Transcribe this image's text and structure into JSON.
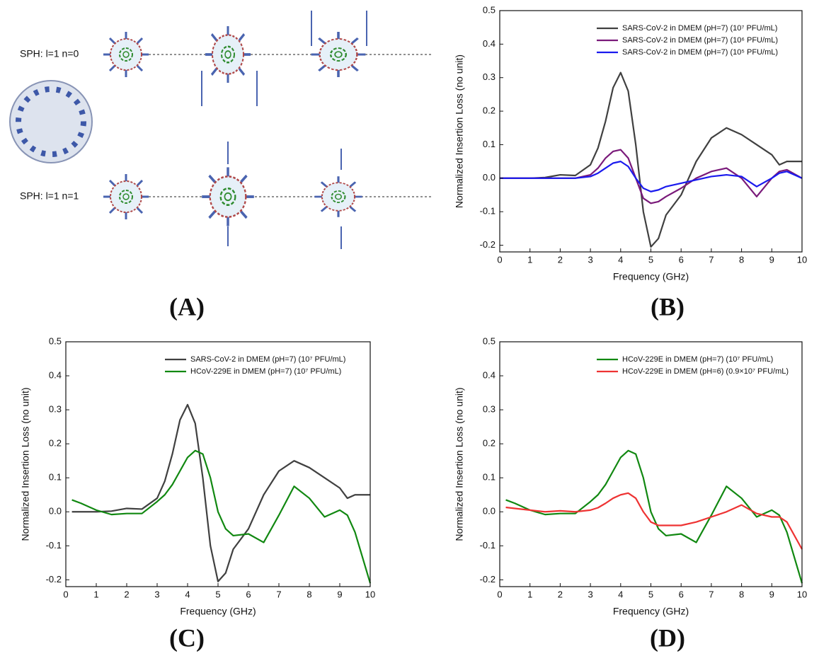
{
  "panel_a": {
    "caption": "(A)",
    "labels": [
      "SPH: l=1 n=0",
      "SPH: l=1 n=1"
    ]
  },
  "chart_data": [
    {
      "type": "line",
      "caption": "(B)",
      "xlabel": "Frequency (GHz)",
      "ylabel": "Normalized Insertion Loss (no unit)",
      "x": [
        0,
        0.5,
        1,
        1.5,
        2,
        2.5,
        3,
        3.25,
        3.5,
        3.75,
        4,
        4.25,
        4.5,
        4.75,
        5,
        5.25,
        5.5,
        6,
        6.5,
        7,
        7.5,
        8,
        8.5,
        9,
        9.25,
        9.5,
        10
      ],
      "xlim": [
        0,
        10
      ],
      "xticks": [
        0,
        1,
        2,
        3,
        4,
        5,
        6,
        7,
        8,
        9,
        10
      ],
      "ylim": [
        -0.22,
        0.5
      ],
      "yticks": [
        -0.2,
        -0.1,
        {
          "value": 0,
          "label": "0.0"
        },
        0.1,
        0.2,
        0.3,
        0.4,
        0.5
      ],
      "legend": "upper right",
      "series": [
        {
          "name": "SARS-CoV-2 in DMEM  (pH=7) (10⁷ PFU/mL)",
          "color": "#404040",
          "values": [
            0,
            0,
            0,
            0.002,
            0.01,
            0.008,
            0.04,
            0.09,
            0.17,
            0.27,
            0.315,
            0.26,
            0.1,
            -0.1,
            -0.205,
            -0.18,
            -0.11,
            -0.05,
            0.05,
            0.12,
            0.15,
            0.13,
            0.1,
            0.07,
            0.04,
            0.05,
            0.05
          ]
        },
        {
          "name": "SARS-CoV-2 in DMEM  (pH=7) (10⁶ PFU/mL)",
          "color": "#7a1a7a",
          "values": [
            0,
            0,
            0,
            0,
            0,
            0,
            0.01,
            0.03,
            0.06,
            0.08,
            0.085,
            0.06,
            0,
            -0.06,
            -0.075,
            -0.07,
            -0.055,
            -0.03,
            0,
            0.02,
            0.03,
            0,
            -0.055,
            0,
            0.02,
            0.025,
            0
          ]
        },
        {
          "name": "SARS-CoV-2 in DMEM  (pH=7) (10⁵ PFU/mL)",
          "color": "#1a1aee",
          "values": [
            0,
            0,
            0,
            0,
            0,
            0,
            0.005,
            0.015,
            0.03,
            0.045,
            0.05,
            0.035,
            0,
            -0.03,
            -0.04,
            -0.035,
            -0.025,
            -0.015,
            -0.005,
            0.005,
            0.01,
            0.005,
            -0.025,
            0,
            0.015,
            0.02,
            0
          ]
        }
      ]
    },
    {
      "type": "line",
      "caption": "(C)",
      "xlabel": "Frequency (GHz)",
      "ylabel": "Normalized Insertion Loss (no unit)",
      "x": [
        0.2,
        0.5,
        1,
        1.5,
        2,
        2.5,
        3,
        3.25,
        3.5,
        3.75,
        4,
        4.25,
        4.5,
        4.75,
        5,
        5.25,
        5.5,
        6,
        6.5,
        7,
        7.5,
        8,
        8.5,
        9,
        9.25,
        9.5,
        10
      ],
      "xlim": [
        0,
        10
      ],
      "xticks": [
        0,
        1,
        2,
        3,
        4,
        5,
        6,
        7,
        8,
        9,
        10
      ],
      "ylim": [
        -0.22,
        0.5
      ],
      "yticks": [
        -0.2,
        -0.1,
        {
          "value": 0,
          "label": "0.0"
        },
        0.1,
        0.2,
        0.3,
        0.4,
        0.5
      ],
      "legend": "upper right",
      "series": [
        {
          "name": "SARS-CoV-2 in DMEM  (pH=7) (10⁷ PFU/mL)",
          "color": "#404040",
          "values": [
            0,
            0,
            0,
            0.002,
            0.01,
            0.008,
            0.04,
            0.09,
            0.17,
            0.27,
            0.315,
            0.26,
            0.1,
            -0.1,
            -0.205,
            -0.18,
            -0.11,
            -0.05,
            0.05,
            0.12,
            0.15,
            0.13,
            0.1,
            0.07,
            0.04,
            0.05,
            0.05
          ]
        },
        {
          "name": "HCoV-229E in DMEM (pH=7) (10⁷ PFU/mL)",
          "color": "#118811",
          "values": [
            0.035,
            0.025,
            0.005,
            -0.008,
            -0.005,
            -0.005,
            0.03,
            0.05,
            0.08,
            0.12,
            0.16,
            0.18,
            0.17,
            0.1,
            0,
            -0.05,
            -0.07,
            -0.065,
            -0.09,
            -0.01,
            0.075,
            0.04,
            -0.015,
            0.005,
            -0.01,
            -0.06,
            -0.21
          ]
        }
      ]
    },
    {
      "type": "line",
      "caption": "(D)",
      "xlabel": "Frequency (GHz)",
      "ylabel": "Normalized Insertion Loss (no unit)",
      "x": [
        0.2,
        0.5,
        1,
        1.5,
        2,
        2.5,
        3,
        3.25,
        3.5,
        3.75,
        4,
        4.25,
        4.5,
        4.75,
        5,
        5.25,
        5.5,
        6,
        6.5,
        7,
        7.5,
        8,
        8.5,
        9,
        9.25,
        9.5,
        10
      ],
      "xlim": [
        0,
        10
      ],
      "xticks": [
        0,
        1,
        2,
        3,
        4,
        5,
        6,
        7,
        8,
        9,
        10
      ],
      "ylim": [
        -0.22,
        0.5
      ],
      "yticks": [
        -0.2,
        -0.1,
        {
          "value": 0,
          "label": "0.0"
        },
        0.1,
        0.2,
        0.3,
        0.4,
        0.5
      ],
      "legend": "upper right",
      "series": [
        {
          "name": "HCoV-229E in DMEM (pH=7) (10⁷ PFU/mL)",
          "color": "#118811",
          "values": [
            0.035,
            0.025,
            0.005,
            -0.008,
            -0.005,
            -0.005,
            0.03,
            0.05,
            0.08,
            0.12,
            0.16,
            0.18,
            0.17,
            0.1,
            0,
            -0.05,
            -0.07,
            -0.065,
            -0.09,
            -0.01,
            0.075,
            0.04,
            -0.015,
            0.005,
            -0.01,
            -0.06,
            -0.21
          ]
        },
        {
          "name": "HCoV-229E in DMEM (pH=6) (0.9×10⁷ PFU/mL)",
          "color": "#ee3333",
          "values": [
            0.013,
            0.01,
            0.005,
            0,
            0.003,
            0,
            0.005,
            0.012,
            0.025,
            0.04,
            0.05,
            0.055,
            0.04,
            0,
            -0.03,
            -0.04,
            -0.04,
            -0.04,
            -0.03,
            -0.015,
            0,
            0.02,
            -0.005,
            -0.015,
            -0.015,
            -0.03,
            -0.11
          ]
        }
      ]
    }
  ]
}
